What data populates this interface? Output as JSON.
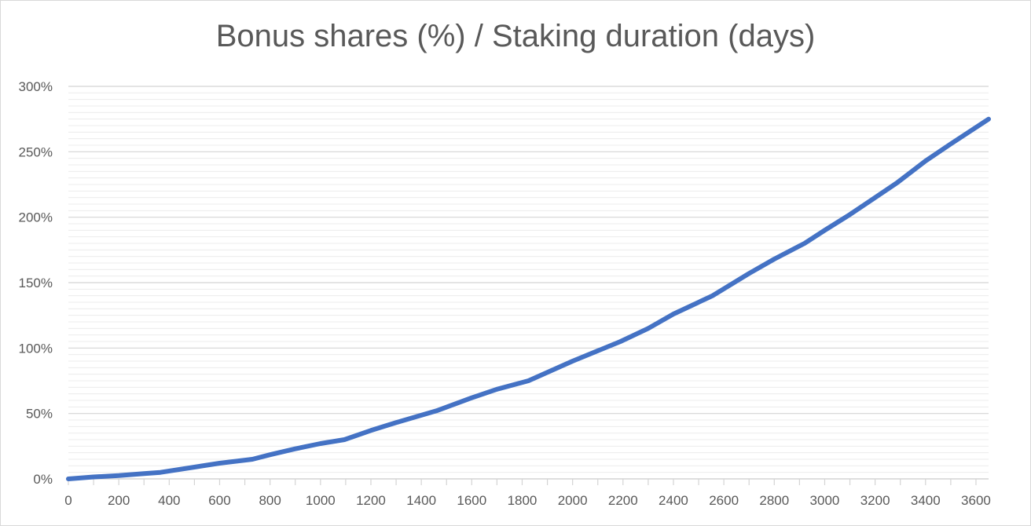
{
  "chart_data": {
    "type": "line",
    "title": "Bonus shares (%) / Staking duration (days)",
    "xlabel": "",
    "ylabel": "",
    "xlim": [
      0,
      3650
    ],
    "ylim": [
      0,
      300
    ],
    "x_ticks": [
      0,
      200,
      400,
      600,
      800,
      1000,
      1200,
      1400,
      1600,
      1800,
      2000,
      2200,
      2400,
      2600,
      2800,
      3000,
      3200,
      3400,
      3600
    ],
    "y_ticks": [
      0,
      50,
      100,
      150,
      200,
      250,
      300
    ],
    "y_tick_suffix": "%",
    "major_grid": true,
    "minor_grid": true,
    "legend": "none",
    "series": [
      {
        "color": "#4472c4",
        "x": [
          0,
          100,
          200,
          300,
          365,
          500,
          600,
          730,
          800,
          900,
          1000,
          1095,
          1200,
          1300,
          1460,
          1600,
          1700,
          1825,
          2000,
          2190,
          2300,
          2400,
          2555,
          2700,
          2800,
          2920,
          3000,
          3100,
          3285,
          3400,
          3500,
          3650
        ],
        "y": [
          0,
          1.5,
          2.5,
          4,
          5,
          9,
          12,
          15,
          18.5,
          23,
          27,
          30,
          37,
          43,
          52,
          62,
          68.5,
          75,
          90,
          105,
          115,
          126,
          140,
          157,
          168,
          180,
          190,
          202,
          226,
          243,
          256,
          275
        ]
      }
    ]
  }
}
